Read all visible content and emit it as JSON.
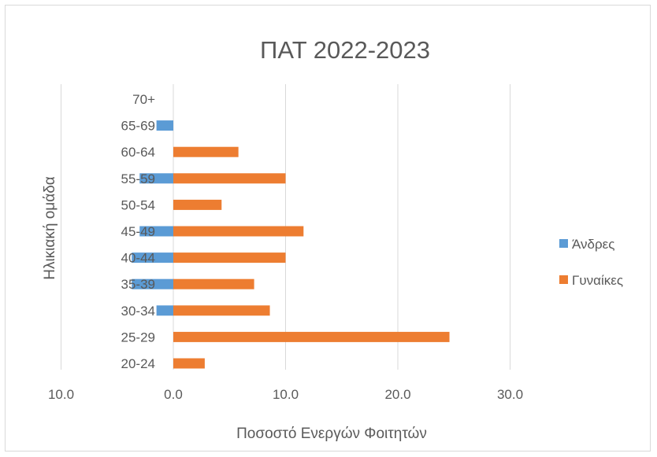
{
  "chart_data": {
    "type": "bar",
    "orientation": "horizontal",
    "title": "ΠΑΤ 2022-2023",
    "xlabel": "Ποσοστό Ενεργών Φοιτητών",
    "ylabel": "Ηλικιακή ομάδα",
    "xlim": [
      -10,
      35
    ],
    "x_ticks": [
      -10,
      0,
      10,
      20,
      30
    ],
    "x_tick_labels": [
      "10.0",
      "0.0",
      "10.0",
      "20.0",
      "30.0"
    ],
    "grid": true,
    "legend_position": "right",
    "categories": [
      "20-24",
      "25-29",
      "30-34",
      "35-39",
      "40-44",
      "45-49",
      "50-54",
      "55-59",
      "60-64",
      "65-69",
      "70+"
    ],
    "series": [
      {
        "name": "Άνδρες",
        "color": "#5b9bd5",
        "values": [
          0,
          0,
          -1.5,
          -3.7,
          -3.7,
          -3.0,
          0,
          -3.0,
          0,
          -1.5,
          0
        ]
      },
      {
        "name": "Γυναίκες",
        "color": "#ed7d31",
        "values": [
          2.8,
          24.6,
          8.6,
          7.2,
          10.0,
          11.6,
          4.3,
          10.0,
          5.8,
          0,
          0
        ]
      }
    ]
  }
}
